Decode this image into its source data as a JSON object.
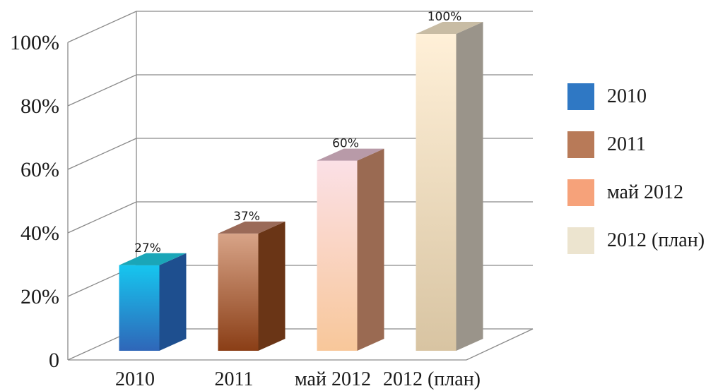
{
  "chart_data": {
    "type": "bar",
    "categories": [
      "2010",
      "2011",
      "май 2012",
      "2012 (план)"
    ],
    "values": [
      27,
      37,
      60,
      100
    ],
    "data_labels": [
      "27%",
      "37%",
      "60%",
      "100%"
    ],
    "yticks": [
      {
        "value": 0,
        "label": "0"
      },
      {
        "value": 20,
        "label": "20%"
      },
      {
        "value": 40,
        "label": "40%"
      },
      {
        "value": 60,
        "label": "60%"
      },
      {
        "value": 80,
        "label": "80%"
      },
      {
        "value": 100,
        "label": "100%"
      }
    ],
    "ylim": [
      0,
      100
    ],
    "title": "",
    "xlabel": "",
    "ylabel": "",
    "grid": true,
    "three_d": true,
    "legend_position": "right",
    "legend": [
      {
        "label": "2010",
        "color": "#2f78c4"
      },
      {
        "label": "2011",
        "color": "#b87a58"
      },
      {
        "label": "май 2012",
        "color": "#f6a27a"
      },
      {
        "label": "2012 (план)",
        "color": "#ece4cf"
      }
    ],
    "bar_colors": [
      {
        "front_top": "#16c6ef",
        "front_bottom": "#2f66b8",
        "side": "#1e4f8f",
        "top": "#1aa6b8"
      },
      {
        "front_top": "#d8a488",
        "front_bottom": "#8a3e16",
        "side": "#6a3516",
        "top": "#9a6a58"
      },
      {
        "front_top": "#fbe0e6",
        "front_bottom": "#f8c79a",
        "side": "#9a6a52",
        "top": "#b89aa8"
      },
      {
        "front_top": "#fff0d8",
        "front_bottom": "#d8c4a2",
        "side": "#9a948a",
        "top": "#c8bca4"
      }
    ]
  }
}
